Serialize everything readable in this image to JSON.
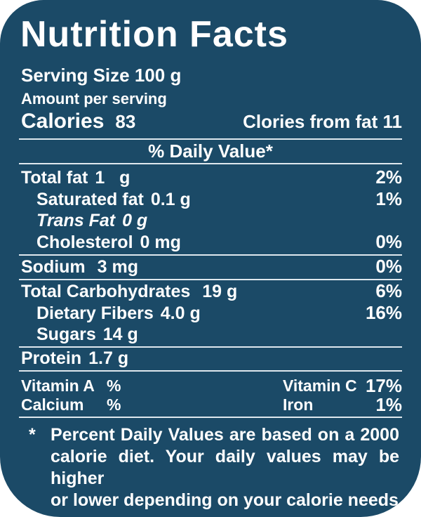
{
  "label": {
    "title": "Nutrition Facts",
    "serving_size": "Serving Size 100 g",
    "amount_per_serving": "Amount per serving",
    "calories_label": "Calories",
    "calories_value": "83",
    "calories_from_fat": "Clories from fat 11",
    "daily_value_header": "% Daily Value*"
  },
  "colors": {
    "background": "#1b4a67",
    "text": "#ffffff",
    "divider": "#dfe8ee"
  },
  "rows": [
    {
      "name": "Total fat",
      "amount": "1   g",
      "dv": "2%"
    },
    {
      "name": "Saturated fat",
      "amount": "0.1 g",
      "dv": "1%"
    },
    {
      "name": "Trans Fat",
      "amount": "0 g",
      "dv": ""
    },
    {
      "name": "Cholesterol",
      "amount": "0 mg",
      "dv": "0%"
    },
    {
      "name": "Sodium",
      "amount": " 3 mg",
      "dv": "0%"
    },
    {
      "name": "Total Carbohydrates",
      "amount": " 19 g",
      "dv": "6%"
    },
    {
      "name": "Dietary Fibers",
      "amount": "4.0 g",
      "dv": "16%"
    },
    {
      "name": "Sugars",
      "amount": "14 g",
      "dv": ""
    },
    {
      "name": "Protein",
      "amount": "1.7 g",
      "dv": ""
    }
  ],
  "vitamins": [
    {
      "name": "Vitamin A",
      "value": "%"
    },
    {
      "name": "Vitamin C",
      "value": "17%"
    },
    {
      "name": "Calcium",
      "value": "%"
    },
    {
      "name": "Iron",
      "value": "1%"
    }
  ],
  "footnote": {
    "marker": "*",
    "lines": [
      "Percent Daily Values are based on a 2000",
      "calorie diet. Your daily values may be higher",
      "or lower depending on your calorie needs"
    ]
  }
}
